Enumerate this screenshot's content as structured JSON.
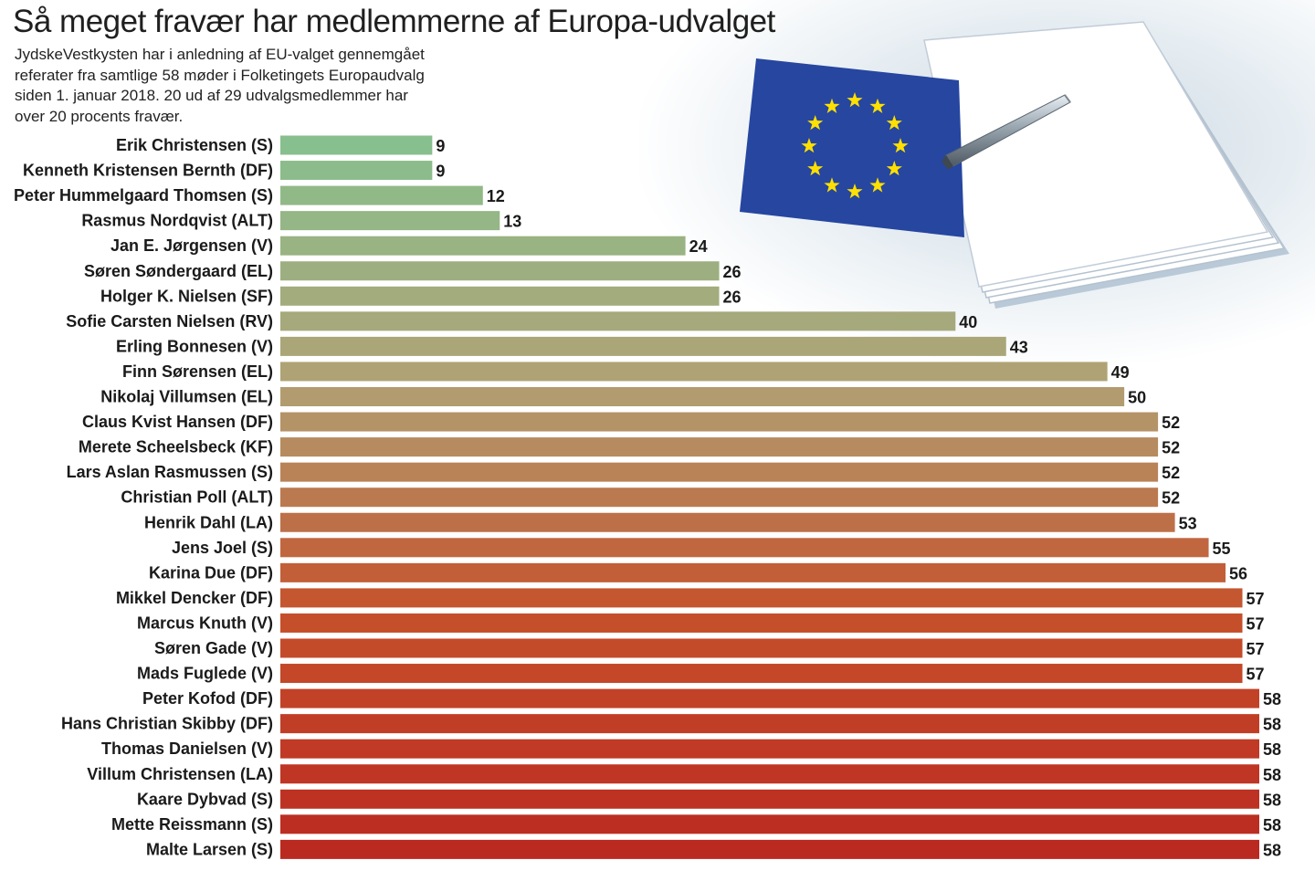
{
  "title": "Så meget fravær har medlemmerne af Europa-udvalget",
  "subtitle": "JydskeVestkysten har i anledning af EU-valget gennemgået\nreferater fra samtlige 58 møder i Folketingets Europaudvalg\nsiden 1. januar 2018. 20 ud af 29 udvalgsmedlemmer har\nover 20 procents fravær.",
  "illustration": {
    "flag_icon": "eu-flag-icon",
    "papers_icon": "papers-icon",
    "pen_icon": "pen-icon",
    "colors": {
      "flag_blue": "#2646a0",
      "star_yellow": "#ffe000"
    }
  },
  "chart_data": {
    "type": "bar",
    "orientation": "horizontal",
    "xlim": [
      0,
      58
    ],
    "color_scale": [
      "#88bf8e",
      "#b0a274",
      "#c6502b",
      "#bb2a20"
    ],
    "categories": [
      "Erik Christensen (S)",
      "Kenneth Kristensen Bernth (DF)",
      "Peter Hummelgaard Thomsen (S)",
      "Rasmus Nordqvist (ALT)",
      "Jan E. Jørgensen (V)",
      "Søren Søndergaard (EL)",
      "Holger K. Nielsen (SF)",
      "Sofie Carsten Nielsen (RV)",
      "Erling Bonnesen (V)",
      "Finn Sørensen (EL)",
      "Nikolaj Villumsen (EL)",
      "Claus Kvist Hansen (DF)",
      "Merete Scheelsbeck (KF)",
      "Lars Aslan Rasmussen (S)",
      "Christian Poll (ALT)",
      "Henrik Dahl (LA)",
      "Jens Joel (S)",
      "Karina Due (DF)",
      "Mikkel Dencker (DF)",
      "Marcus Knuth (V)",
      "Søren Gade (V)",
      "Mads Fuglede (V)",
      "Peter Kofod (DF)",
      "Hans Christian Skibby (DF)",
      "Thomas Danielsen (V)",
      "Villum Christensen (LA)",
      "Kaare Dybvad (S)",
      "Mette Reissmann (S)",
      "Malte Larsen (S)"
    ],
    "values": [
      9,
      9,
      12,
      13,
      24,
      26,
      26,
      40,
      43,
      49,
      50,
      52,
      52,
      52,
      52,
      53,
      55,
      56,
      57,
      57,
      57,
      57,
      58,
      58,
      58,
      58,
      58,
      58,
      58
    ]
  }
}
